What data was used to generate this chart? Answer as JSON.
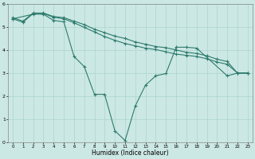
{
  "xlabel": "Humidex (Indice chaleur)",
  "ylabel": "",
  "xlim": [
    -0.5,
    23.5
  ],
  "ylim": [
    0,
    6
  ],
  "xticks": [
    0,
    1,
    2,
    3,
    4,
    5,
    6,
    7,
    8,
    9,
    10,
    11,
    12,
    13,
    14,
    15,
    16,
    17,
    18,
    19,
    20,
    21,
    22,
    23
  ],
  "yticks": [
    0,
    1,
    2,
    3,
    4,
    5,
    6
  ],
  "line_color": "#2e7b6e",
  "bg_color": "#cce8e4",
  "grid_color": "#aad4cc",
  "line1": {
    "x": [
      0,
      1,
      2,
      3,
      4,
      5,
      6,
      7,
      8,
      9,
      10,
      11,
      12,
      13,
      14,
      15,
      16,
      17,
      18,
      19,
      20,
      21,
      22,
      23
    ],
    "y": [
      5.4,
      5.25,
      5.6,
      5.6,
      5.45,
      5.4,
      5.25,
      5.1,
      4.9,
      4.75,
      4.6,
      4.5,
      4.35,
      4.25,
      4.15,
      4.1,
      4.0,
      3.9,
      3.85,
      3.75,
      3.6,
      3.5,
      3.0,
      3.0
    ]
  },
  "line2": {
    "x": [
      0,
      1,
      2,
      3,
      4,
      5,
      6,
      7,
      8,
      9,
      10,
      11,
      12,
      13,
      14,
      15,
      16,
      17,
      18,
      19,
      20,
      21,
      22,
      23
    ],
    "y": [
      5.35,
      5.2,
      5.58,
      5.58,
      5.42,
      5.35,
      5.18,
      4.98,
      4.78,
      4.58,
      4.42,
      4.28,
      4.18,
      4.08,
      4.02,
      3.92,
      3.82,
      3.77,
      3.72,
      3.62,
      3.48,
      3.38,
      3.0,
      3.0
    ]
  },
  "line3": {
    "x": [
      0,
      2,
      3,
      4,
      5,
      6,
      7,
      8,
      9,
      10,
      11,
      12,
      13,
      14,
      15,
      16,
      17,
      18,
      21,
      22,
      23
    ],
    "y": [
      5.35,
      5.55,
      5.55,
      5.28,
      5.22,
      3.72,
      3.28,
      2.08,
      2.08,
      0.5,
      0.08,
      1.58,
      2.48,
      2.88,
      2.98,
      4.12,
      4.12,
      4.08,
      2.88,
      3.0,
      3.0
    ]
  }
}
